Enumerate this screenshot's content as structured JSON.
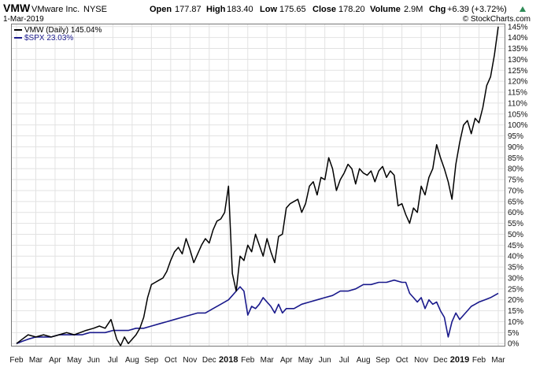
{
  "header": {
    "ticker": "VMW",
    "company": "VMware Inc.",
    "exchange": "NYSE",
    "date": "1-Mar-2019",
    "open_label": "Open",
    "open_value": "177.87",
    "high_label": "High",
    "high_value": "183.40",
    "low_label": "Low",
    "low_value": "175.65",
    "close_label": "Close",
    "close_value": "178.20",
    "volume_label": "Volume",
    "volume_value": "2.9M",
    "chg_label": "Chg",
    "chg_value": "+6.39 (+3.72%)",
    "brand": "© StockCharts.com"
  },
  "legend": {
    "vmw": "VMW (Daily) 145.04%",
    "spx": "$SPX 23.03%"
  },
  "colors": {
    "vmw": "#000000",
    "spx": "#1a1a8c",
    "grid": "#e2e2e2",
    "up_arrow": "#2e8b57"
  },
  "chart_data": {
    "type": "line",
    "x_axis": [
      "Feb",
      "Mar",
      "Apr",
      "May",
      "Jun",
      "Jul",
      "Aug",
      "Sep",
      "Oct",
      "Nov",
      "Dec",
      "2018",
      "Feb",
      "Mar",
      "Apr",
      "May",
      "Jun",
      "Jul",
      "Aug",
      "Sep",
      "Oct",
      "Nov",
      "Dec",
      "2019",
      "Feb",
      "Mar"
    ],
    "y_ticks": [
      "0%",
      "5%",
      "10%",
      "15%",
      "20%",
      "25%",
      "30%",
      "35%",
      "40%",
      "45%",
      "50%",
      "55%",
      "60%",
      "65%",
      "70%",
      "75%",
      "80%",
      "85%",
      "90%",
      "95%",
      "100%",
      "105%",
      "110%",
      "115%",
      "120%",
      "125%",
      "130%",
      "135%",
      "140%",
      "145%"
    ],
    "ylim": [
      -1,
      146
    ],
    "grid": true,
    "legend_position": "top-left",
    "series": [
      {
        "name": "VMW (Daily) 145.04%",
        "x": [
          0,
          0.3,
          0.6,
          1.0,
          1.4,
          1.8,
          2.2,
          2.6,
          3.0,
          3.3,
          3.6,
          4.0,
          4.3,
          4.6,
          4.9,
          5.2,
          5.4,
          5.6,
          5.8,
          6.0,
          6.2,
          6.4,
          6.6,
          6.8,
          7.0,
          7.2,
          7.4,
          7.6,
          7.8,
          8.0,
          8.2,
          8.4,
          8.6,
          8.8,
          9.0,
          9.2,
          9.4,
          9.6,
          9.8,
          10.0,
          10.2,
          10.4,
          10.6,
          10.8,
          11.0,
          11.2,
          11.4,
          11.6,
          11.8,
          12.0,
          12.2,
          12.4,
          12.6,
          12.8,
          13.0,
          13.2,
          13.4,
          13.6,
          13.8,
          14.0,
          14.2,
          14.4,
          14.6,
          14.8,
          15.0,
          15.2,
          15.4,
          15.6,
          15.8,
          16.0,
          16.2,
          16.4,
          16.6,
          16.8,
          17.0,
          17.2,
          17.4,
          17.6,
          17.8,
          18.0,
          18.2,
          18.4,
          18.6,
          18.8,
          19.0,
          19.2,
          19.4,
          19.6,
          19.8,
          20.0,
          20.2,
          20.4,
          20.6,
          20.8,
          21.0,
          21.2,
          21.4,
          21.6,
          21.8,
          22.0,
          22.2,
          22.4,
          22.6,
          22.8,
          23.0,
          23.2,
          23.4,
          23.6,
          23.8,
          24.0,
          24.2,
          24.4,
          24.6,
          24.8,
          25.0
        ],
        "values": [
          0,
          2,
          4,
          3,
          4,
          3,
          4,
          5,
          4,
          5,
          6,
          7,
          8,
          7,
          11,
          2,
          -1,
          3,
          0,
          2,
          4,
          7,
          12,
          21,
          27,
          28,
          29,
          30,
          33,
          38,
          42,
          44,
          41,
          48,
          43,
          37,
          41,
          45,
          48,
          46,
          52,
          56,
          57,
          60,
          72,
          32,
          24,
          40,
          38,
          45,
          42,
          50,
          45,
          40,
          48,
          42,
          37,
          49,
          50,
          62,
          64,
          65,
          66,
          60,
          64,
          72,
          74,
          68,
          76,
          75,
          85,
          80,
          70,
          75,
          78,
          82,
          80,
          73,
          80,
          78,
          77,
          79,
          74,
          79,
          81,
          76,
          79,
          77,
          63,
          64,
          59,
          55,
          62,
          60,
          72,
          68,
          76,
          80,
          91,
          85,
          80,
          74,
          66,
          82,
          92,
          100,
          102,
          96,
          103,
          101,
          108,
          118,
          122,
          132,
          145
        ]
      },
      {
        "name": "$SPX 23.03%",
        "x": [
          0,
          0.3,
          0.6,
          1.0,
          1.4,
          1.8,
          2.2,
          2.6,
          3.0,
          3.4,
          3.8,
          4.2,
          4.6,
          5.0,
          5.4,
          5.8,
          6.2,
          6.6,
          7.0,
          7.4,
          7.8,
          8.2,
          8.6,
          9.0,
          9.4,
          9.8,
          10.2,
          10.6,
          11.0,
          11.2,
          11.4,
          11.6,
          11.8,
          12.0,
          12.2,
          12.4,
          12.6,
          12.8,
          13.0,
          13.2,
          13.4,
          13.6,
          13.8,
          14.0,
          14.4,
          14.8,
          15.2,
          15.6,
          16.0,
          16.4,
          16.8,
          17.2,
          17.6,
          18.0,
          18.4,
          18.8,
          19.2,
          19.6,
          20.0,
          20.2,
          20.4,
          20.6,
          20.8,
          21.0,
          21.2,
          21.4,
          21.6,
          21.8,
          22.0,
          22.2,
          22.4,
          22.6,
          22.8,
          23.0,
          23.2,
          23.4,
          23.6,
          23.8,
          24.0,
          24.3,
          24.6,
          25.0
        ],
        "values": [
          0,
          1,
          2,
          3,
          3,
          3,
          4,
          4,
          4,
          4,
          5,
          5,
          5,
          6,
          6,
          6,
          7,
          7,
          8,
          9,
          10,
          11,
          12,
          13,
          14,
          14,
          16,
          18,
          20,
          22,
          24,
          26,
          24,
          13,
          17,
          16,
          18,
          21,
          19,
          17,
          14,
          18,
          14,
          16,
          16,
          18,
          19,
          20,
          21,
          22,
          24,
          24,
          25,
          27,
          27,
          28,
          28,
          29,
          28,
          28,
          23,
          21,
          19,
          21,
          16,
          20,
          18,
          19,
          15,
          12,
          3,
          10,
          14,
          11,
          13,
          15,
          17,
          18,
          19,
          20,
          21,
          23
        ]
      }
    ]
  }
}
